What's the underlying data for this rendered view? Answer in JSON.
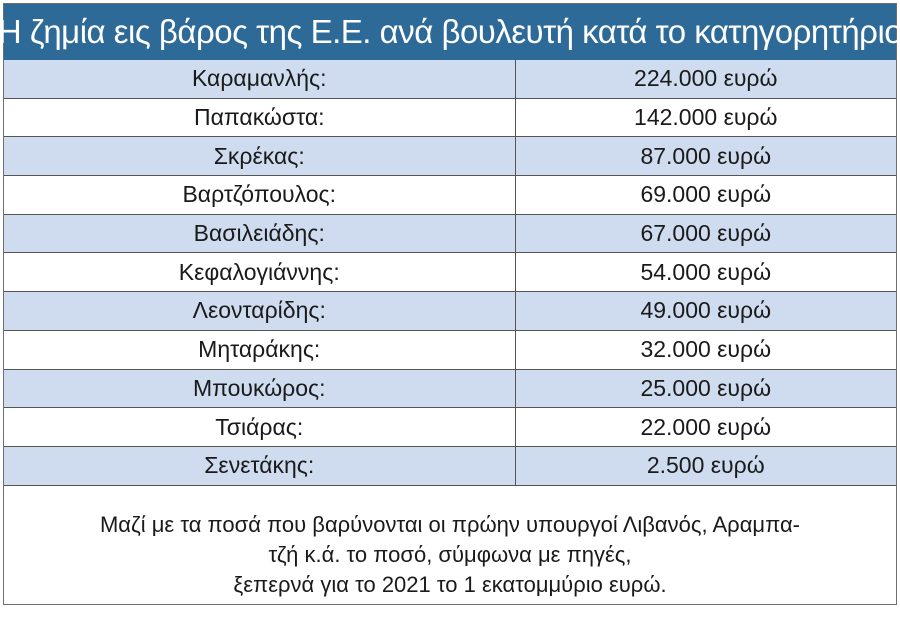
{
  "title": "Η ζημία εις βάρος της Ε.Ε. ανά βουλευτή κατά το κατηγορητήριο",
  "rows": [
    {
      "name": "Καραμανλής:",
      "amount": "224.000 ευρώ"
    },
    {
      "name": "Παπακώστα:",
      "amount": "142.000 ευρώ"
    },
    {
      "name": "Σκρέκας:",
      "amount": "87.000 ευρώ"
    },
    {
      "name": "Βαρτζόπουλος:",
      "amount": "69.000 ευρώ"
    },
    {
      "name": "Βασιλειάδης:",
      "amount": "67.000 ευρώ"
    },
    {
      "name": "Κεφαλογιάννης:",
      "amount": "54.000 ευρώ"
    },
    {
      "name": "Λεονταρίδης:",
      "amount": "49.000 ευρώ"
    },
    {
      "name": "Μηταράκης:",
      "amount": "32.000 ευρώ"
    },
    {
      "name": "Μπουκώρος:",
      "amount": "25.000 ευρώ"
    },
    {
      "name": "Τσιάρας:",
      "amount": "22.000 ευρώ"
    },
    {
      "name": "Σενετάκης:",
      "amount": "2.500 ευρώ"
    }
  ],
  "note": {
    "line1": "Μαζί με τα ποσά που βαρύνονται οι πρώην υπουργοί Λιβανός, Αραμπα-",
    "line2": "τζή κ.ά. το ποσό, σύμφωνα με πηγές,",
    "line3": "ξεπερνά για το 2021 το 1 εκατομμύριο ευρώ."
  },
  "colors": {
    "header_bg": "#2d6a97",
    "stripe_bg": "#cfdcef",
    "border": "#555555"
  }
}
